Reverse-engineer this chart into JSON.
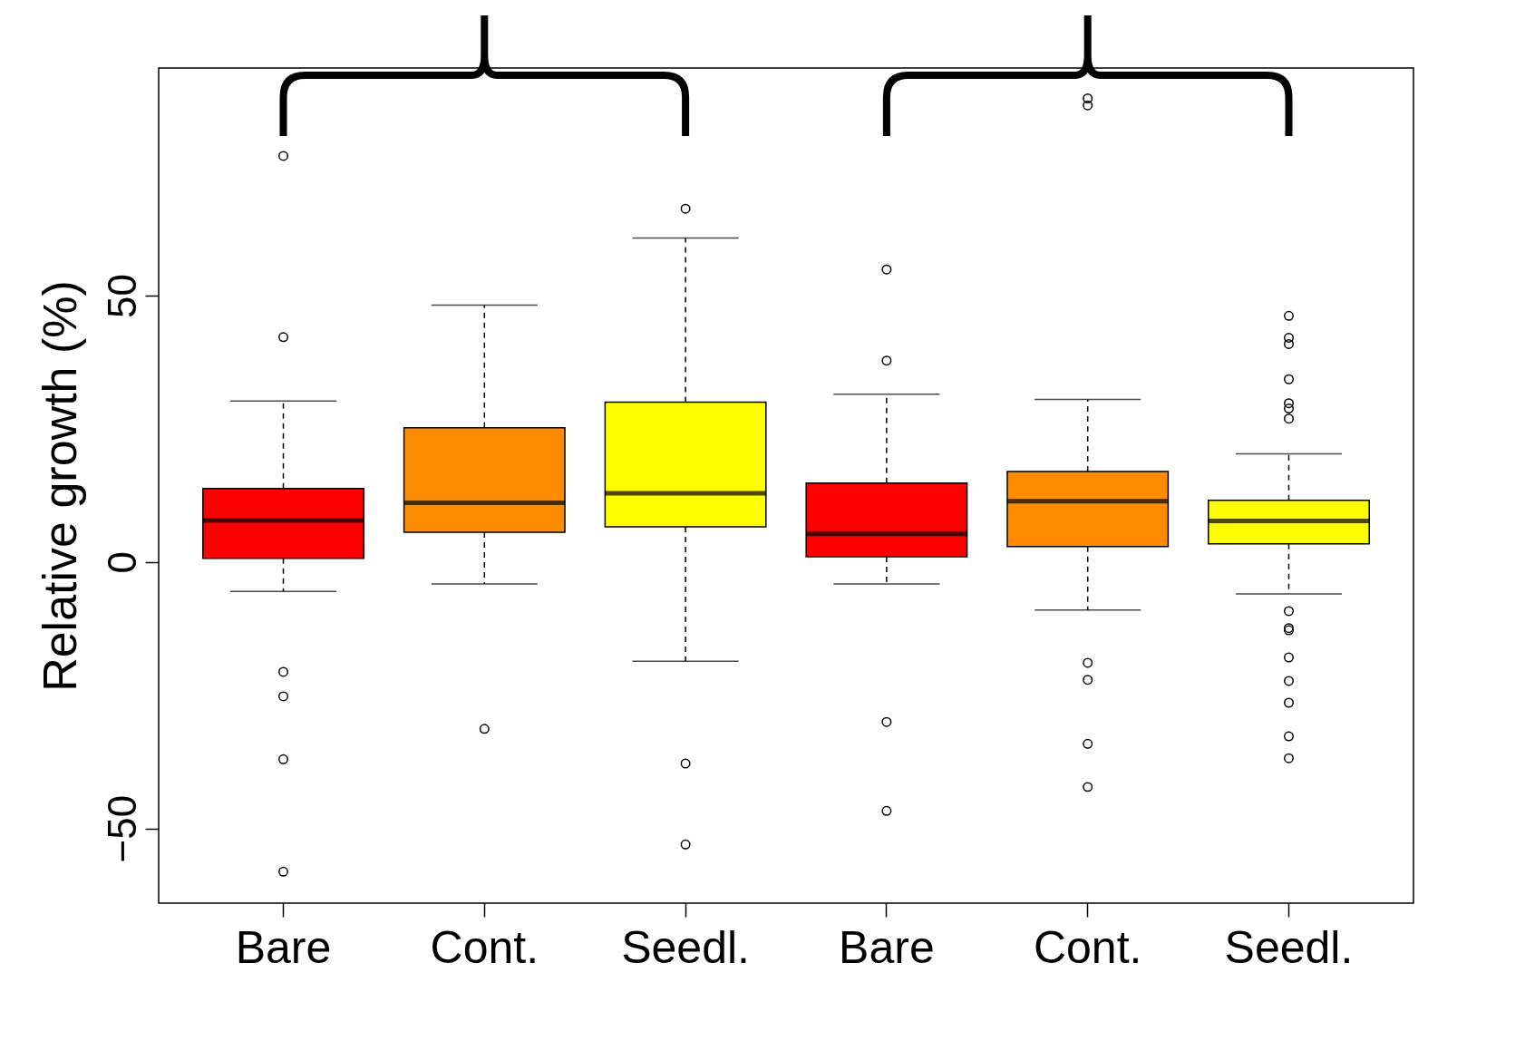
{
  "chart_data": {
    "type": "box",
    "ylabel": "Relative growth (%)",
    "categories": [
      "Bare",
      "Cont.",
      "Seedl.",
      "Bare",
      "Cont.",
      "Seedl."
    ],
    "colors": [
      "#ff0000",
      "#ff8c00",
      "#ffff00",
      "#ff0000",
      "#ff8c00",
      "#ffff00"
    ],
    "boxes": [
      {
        "low": -5.5,
        "q1": 0.7,
        "median": 7.8,
        "q3": 13.8,
        "high": 30.2,
        "outliers": [
          76.2,
          42.2,
          -20.6,
          -25.2,
          -37,
          -58.1
        ]
      },
      {
        "low": -4.1,
        "q1": 5.6,
        "median": 11.1,
        "q3": 25.2,
        "high": 48.2,
        "outliers": [
          -31.3
        ]
      },
      {
        "low": -18.6,
        "q1": 6.6,
        "median": 12.9,
        "q3": 30,
        "high": 60.8,
        "outliers": [
          66.3,
          -37.8,
          -53
        ]
      },
      {
        "low": -4.1,
        "q1": 1,
        "median": 5.3,
        "q3": 14.8,
        "high": 31.5,
        "outliers": [
          54.9,
          37.8,
          -30,
          -46.7
        ]
      },
      {
        "low": -9,
        "q1": 2.9,
        "median": 11.4,
        "q3": 17,
        "high": 30.5,
        "outliers": [
          87,
          85.7,
          -18.9,
          -22.1,
          -34.1,
          -42.2
        ]
      },
      {
        "low": -6,
        "q1": 3.4,
        "median": 7.7,
        "q3": 11.6,
        "high": 20.3,
        "outliers": [
          46.2,
          42.1,
          40.9,
          34.3,
          29.8,
          28.8,
          26.9,
          -9.2,
          -12.4,
          -12.8,
          -17.9,
          -22.3,
          -26.4,
          -32.7,
          -36.8
        ]
      }
    ],
    "ylim": [
      -64,
      92.7
    ],
    "yticks": [
      -50,
      0,
      50
    ],
    "grid": false
  }
}
